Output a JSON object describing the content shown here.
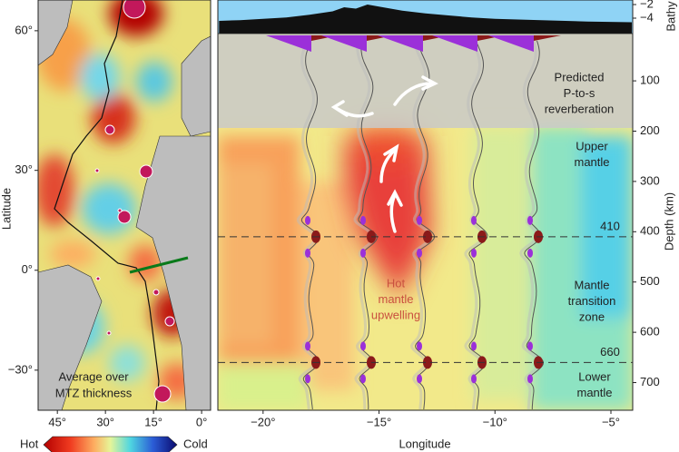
{
  "chart_data": [
    {
      "type": "map",
      "ylabel": "Latitude",
      "annotation": [
        "Average over",
        "MTZ thickness"
      ],
      "xlim": [
        -51,
        2.8
      ],
      "ylim": [
        -40.3,
        64.5
      ],
      "xticks": [
        {
          "value": -45,
          "label": "45°"
        },
        {
          "value": -30,
          "label": "30°"
        },
        {
          "value": -15,
          "label": "15°"
        },
        {
          "value": 0,
          "label": "0°"
        }
      ],
      "yticks": [
        {
          "value": 60,
          "label": "60°"
        },
        {
          "value": 30,
          "label": "30°"
        },
        {
          "value": 0,
          "label": "0°"
        },
        {
          "value": -30,
          "label": "−30°"
        }
      ],
      "colorbar": {
        "low_label": "Hot",
        "high_label": "Cold"
      }
    },
    {
      "type": "section",
      "xlabel": "Longitude",
      "ylabel": "Depth (km)",
      "xlim": [
        -21.95,
        -4.06
      ],
      "ylim": [
        6,
        755
      ],
      "xticks": [
        {
          "value": -20,
          "label": "−20°"
        },
        {
          "value": -15,
          "label": "−15°"
        },
        {
          "value": -10,
          "label": "−10°"
        },
        {
          "value": -5,
          "label": "−5°"
        }
      ],
      "yticks": [
        100,
        200,
        300,
        400,
        500,
        600,
        700
      ],
      "discontinuities": [
        410,
        660
      ],
      "annotations": [
        {
          "lines": [
            "Predicted",
            "P-to-s",
            "reverberation"
          ]
        },
        {
          "lines": [
            "Upper",
            "mantle"
          ]
        },
        {
          "lines": [
            "Mantle",
            "transition",
            "zone"
          ]
        },
        {
          "lines": [
            "Lower",
            "mantle"
          ]
        },
        {
          "lines": [
            "Hot",
            "mantle",
            "upwelling"
          ]
        }
      ],
      "bathymetry": {
        "ylabel": "Bathy",
        "ylim": [
          -6.27,
          -1.33
        ],
        "yticks": [
          {
            "value": -2,
            "label": "−2"
          },
          {
            "value": -4,
            "label": "−4"
          }
        ],
        "x": [
          -21.9,
          -21,
          -20,
          -19,
          -18,
          -17,
          -16.5,
          -16,
          -15.5,
          -15,
          -14.5,
          -14,
          -13,
          -12,
          -11,
          -10,
          -8,
          -6,
          -4.1
        ],
        "values": [
          -4.4,
          -4.3,
          -4.1,
          -3.9,
          -3.5,
          -3.0,
          -2.4,
          -2.6,
          -2.0,
          -2.3,
          -2.6,
          -2.9,
          -3.3,
          -3.6,
          -3.9,
          -4.1,
          -4.3,
          -4.5,
          -4.6
        ]
      }
    }
  ]
}
